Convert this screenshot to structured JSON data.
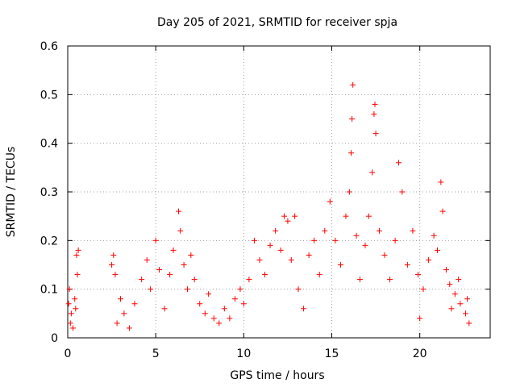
{
  "chart_data": {
    "type": "scatter",
    "title": "Day 205 of 2021, SRMTID for receiver spja",
    "xlabel": "GPS time / hours",
    "ylabel": "SRMTID / TECUs",
    "xlim": [
      0,
      24
    ],
    "ylim": [
      0,
      0.6
    ],
    "xticks": [
      0,
      5,
      10,
      15,
      20
    ],
    "yticks": [
      0,
      0.1,
      0.2,
      0.3,
      0.4,
      0.5,
      0.6
    ],
    "xtick_labels": [
      "0",
      "5",
      "10",
      "15",
      "20"
    ],
    "ytick_labels": [
      "0",
      "0.1",
      "0.2",
      "0.3",
      "0.4",
      "0.5",
      "0.6"
    ],
    "grid": true,
    "marker": "+",
    "color": "#ff0000",
    "series": [
      {
        "name": "SRMTID",
        "points": [
          [
            0.05,
            0.07
          ],
          [
            0.1,
            0.1
          ],
          [
            0.15,
            0.03
          ],
          [
            0.2,
            0.05
          ],
          [
            0.3,
            0.02
          ],
          [
            0.4,
            0.08
          ],
          [
            0.5,
            0.17
          ],
          [
            0.55,
            0.13
          ],
          [
            0.6,
            0.18
          ],
          [
            0.45,
            0.06
          ],
          [
            2.5,
            0.15
          ],
          [
            2.6,
            0.17
          ],
          [
            2.7,
            0.13
          ],
          [
            2.8,
            0.03
          ],
          [
            3.0,
            0.08
          ],
          [
            3.2,
            0.05
          ],
          [
            3.5,
            0.02
          ],
          [
            3.8,
            0.07
          ],
          [
            4.2,
            0.12
          ],
          [
            4.5,
            0.16
          ],
          [
            4.7,
            0.1
          ],
          [
            5.0,
            0.2
          ],
          [
            5.2,
            0.14
          ],
          [
            5.5,
            0.06
          ],
          [
            5.8,
            0.13
          ],
          [
            6.0,
            0.18
          ],
          [
            6.3,
            0.26
          ],
          [
            6.4,
            0.22
          ],
          [
            6.6,
            0.15
          ],
          [
            6.8,
            0.1
          ],
          [
            7.0,
            0.17
          ],
          [
            7.2,
            0.12
          ],
          [
            7.5,
            0.07
          ],
          [
            7.8,
            0.05
          ],
          [
            8.0,
            0.09
          ],
          [
            8.3,
            0.04
          ],
          [
            8.6,
            0.03
          ],
          [
            8.9,
            0.06
          ],
          [
            9.2,
            0.04
          ],
          [
            9.5,
            0.08
          ],
          [
            9.8,
            0.1
          ],
          [
            10.0,
            0.07
          ],
          [
            10.3,
            0.12
          ],
          [
            10.6,
            0.2
          ],
          [
            10.9,
            0.16
          ],
          [
            11.2,
            0.13
          ],
          [
            11.5,
            0.19
          ],
          [
            11.8,
            0.22
          ],
          [
            12.1,
            0.18
          ],
          [
            12.3,
            0.25
          ],
          [
            12.5,
            0.24
          ],
          [
            12.7,
            0.16
          ],
          [
            12.9,
            0.25
          ],
          [
            13.1,
            0.1
          ],
          [
            13.4,
            0.06
          ],
          [
            13.7,
            0.17
          ],
          [
            14.0,
            0.2
          ],
          [
            14.3,
            0.13
          ],
          [
            14.6,
            0.22
          ],
          [
            14.9,
            0.28
          ],
          [
            15.2,
            0.2
          ],
          [
            15.5,
            0.15
          ],
          [
            15.8,
            0.25
          ],
          [
            16.0,
            0.3
          ],
          [
            16.1,
            0.38
          ],
          [
            16.15,
            0.45
          ],
          [
            16.2,
            0.52
          ],
          [
            16.4,
            0.21
          ],
          [
            16.6,
            0.12
          ],
          [
            16.9,
            0.19
          ],
          [
            17.1,
            0.25
          ],
          [
            17.3,
            0.34
          ],
          [
            17.4,
            0.46
          ],
          [
            17.45,
            0.48
          ],
          [
            17.5,
            0.42
          ],
          [
            17.7,
            0.22
          ],
          [
            18.0,
            0.17
          ],
          [
            18.3,
            0.12
          ],
          [
            18.6,
            0.2
          ],
          [
            18.8,
            0.36
          ],
          [
            19.0,
            0.3
          ],
          [
            19.3,
            0.15
          ],
          [
            19.6,
            0.22
          ],
          [
            19.9,
            0.13
          ],
          [
            20.2,
            0.1
          ],
          [
            20.5,
            0.16
          ],
          [
            20.8,
            0.21
          ],
          [
            21.0,
            0.18
          ],
          [
            21.2,
            0.32
          ],
          [
            21.3,
            0.26
          ],
          [
            21.5,
            0.14
          ],
          [
            21.7,
            0.11
          ],
          [
            22.0,
            0.09
          ],
          [
            22.3,
            0.07
          ],
          [
            22.6,
            0.05
          ],
          [
            22.8,
            0.03
          ],
          [
            22.7,
            0.08
          ],
          [
            22.2,
            0.12
          ],
          [
            21.8,
            0.06
          ],
          [
            20.0,
            0.04
          ]
        ]
      }
    ]
  }
}
